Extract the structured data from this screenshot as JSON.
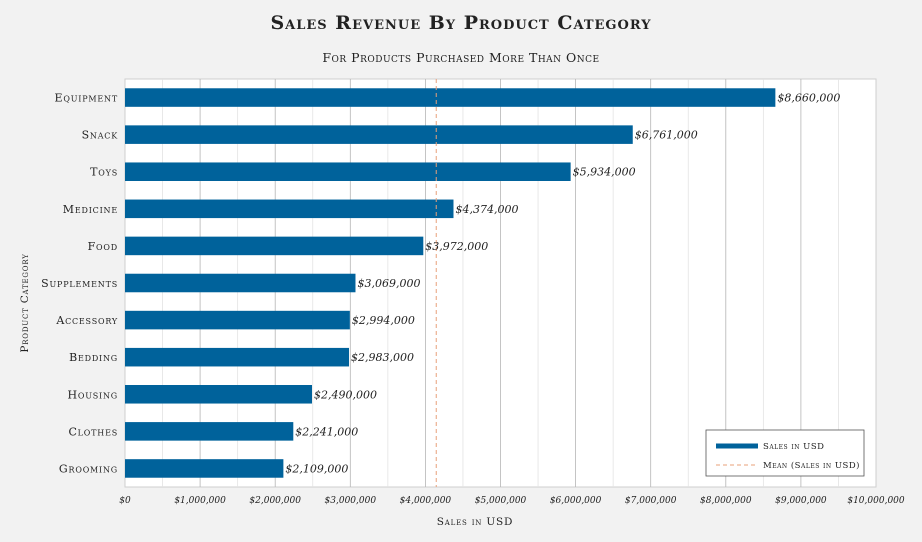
{
  "chart_data": {
    "type": "bar",
    "orientation": "horizontal",
    "title": "Sales Revenue By Product Category",
    "subtitle": "For Products Purchased More Than Once",
    "xlabel": "Sales in USD",
    "ylabel": "Product Category",
    "xlim": [
      0,
      10000000
    ],
    "xticks": [
      0,
      1000000,
      2000000,
      3000000,
      4000000,
      5000000,
      6000000,
      7000000,
      8000000,
      9000000,
      10000000
    ],
    "xtick_labels": [
      "$0",
      "$1,000,000",
      "$2,000,000",
      "$3,000,000",
      "$4,000,000",
      "$5,000,000",
      "$6,000,000",
      "$7,000,000",
      "$8,000,000",
      "$9,000,000",
      "$10,000,000"
    ],
    "categories": [
      "Equipment",
      "Snack",
      "Toys",
      "Medicine",
      "Food",
      "Supplements",
      "Accessory",
      "Bedding",
      "Housing",
      "Clothes",
      "Grooming"
    ],
    "values": [
      8660000,
      6761000,
      5934000,
      4374000,
      3972000,
      3069000,
      2994000,
      2983000,
      2490000,
      2241000,
      2109000
    ],
    "value_labels": [
      "$8,660,000",
      "$6,761,000",
      "$5,934,000",
      "$4,374,000",
      "$3,972,000",
      "$3,069,000",
      "$2,994,000",
      "$2,983,000",
      "$2,490,000",
      "$2,241,000",
      "$2,109,000"
    ],
    "mean": 4144272,
    "grid": true,
    "legend_position": "bottom-right",
    "legend": [
      {
        "label": "Sales in USD",
        "kind": "bar"
      },
      {
        "label": "Mean (Sales in USD)",
        "kind": "dashed-line"
      }
    ],
    "colors": {
      "bar": "#00629b",
      "mean": "#e8a07a"
    }
  }
}
